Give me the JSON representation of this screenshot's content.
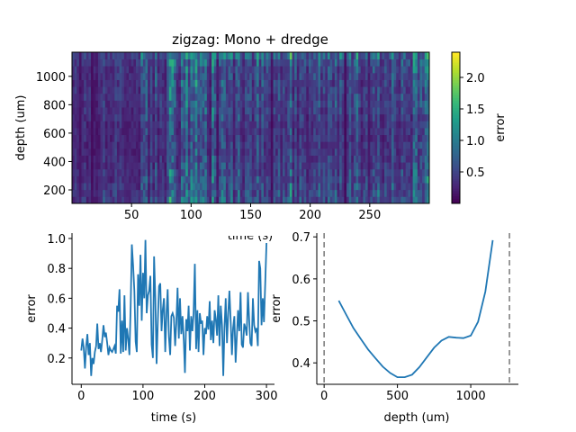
{
  "chart_data": [
    {
      "type": "heatmap",
      "title": "zigzag: Mono + dredge",
      "xlabel": "time (s)",
      "ylabel": "depth (um)",
      "xlim": [
        0,
        300
      ],
      "ylim": [
        105,
        1170
      ],
      "xticks": [
        50,
        100,
        150,
        200,
        250
      ],
      "yticks": [
        200,
        400,
        600,
        800,
        1000
      ],
      "colormap": "viridis",
      "colorbar": {
        "label": "error",
        "range": [
          0.0,
          2.4
        ],
        "ticks": [
          0.5,
          1.0,
          1.5,
          2.0
        ]
      }
    },
    {
      "type": "line",
      "xlabel": "time (s)",
      "ylabel": "error",
      "xlim": [
        -15,
        313
      ],
      "ylim": [
        0.024,
        1.036
      ],
      "xticks": [
        0,
        100,
        200,
        300
      ],
      "yticks": [
        0.2,
        0.4,
        0.6,
        0.8,
        1.0
      ],
      "color": "#1f77b4",
      "x_start": 0,
      "x_step": 2,
      "values": [
        0.25,
        0.33,
        0.27,
        0.13,
        0.28,
        0.36,
        0.22,
        0.3,
        0.08,
        0.2,
        0.16,
        0.24,
        0.28,
        0.43,
        0.26,
        0.3,
        0.24,
        0.32,
        0.42,
        0.34,
        0.37,
        0.3,
        0.22,
        0.27,
        0.25,
        0.24,
        0.26,
        0.28,
        0.23,
        0.55,
        0.51,
        0.66,
        0.23,
        0.45,
        0.24,
        0.62,
        0.25,
        0.4,
        0.33,
        0.22,
        0.55,
        0.96,
        0.82,
        0.65,
        0.31,
        0.24,
        0.76,
        0.55,
        0.89,
        0.45,
        0.77,
        0.6,
        0.99,
        0.5,
        0.62,
        0.65,
        0.75,
        0.29,
        0.2,
        0.88,
        0.6,
        0.16,
        0.45,
        0.68,
        0.7,
        0.38,
        0.52,
        0.6,
        0.24,
        0.5,
        0.66,
        0.34,
        0.22,
        0.48,
        0.5,
        0.47,
        0.28,
        0.43,
        0.67,
        0.33,
        0.6,
        0.36,
        0.48,
        0.32,
        0.1,
        0.46,
        0.38,
        0.55,
        0.25,
        0.48,
        0.38,
        0.5,
        0.83,
        0.26,
        0.52,
        0.24,
        0.5,
        0.43,
        0.45,
        0.22,
        0.4,
        0.36,
        0.48,
        0.39,
        0.58,
        0.32,
        0.45,
        0.3,
        0.52,
        0.46,
        0.35,
        0.62,
        0.28,
        0.55,
        0.42,
        0.08,
        0.4,
        0.6,
        0.3,
        0.5,
        0.65,
        0.45,
        0.22,
        0.4,
        0.48,
        0.17,
        0.35,
        0.52,
        0.38,
        0.64,
        0.29,
        0.27,
        0.43,
        0.4,
        0.35,
        0.64,
        0.45,
        0.3,
        0.28,
        0.6,
        0.42,
        0.38,
        0.4,
        0.28,
        0.85,
        0.8,
        0.42,
        0.6,
        0.44,
        0.7,
        0.97
      ]
    },
    {
      "type": "line",
      "xlabel": "depth (um)",
      "ylabel": "error",
      "xlim": [
        -50,
        1325
      ],
      "ylim": [
        0.349,
        0.709
      ],
      "xticks": [
        0,
        500,
        1000
      ],
      "yticks": [
        0.4,
        0.5,
        0.6,
        0.7
      ],
      "color": "#1f77b4",
      "x": [
        100,
        150,
        200,
        250,
        300,
        350,
        400,
        450,
        500,
        550,
        600,
        650,
        700,
        750,
        800,
        850,
        900,
        950,
        1000,
        1050,
        1100,
        1150
      ],
      "values": [
        0.548,
        0.515,
        0.483,
        0.457,
        0.432,
        0.411,
        0.391,
        0.376,
        0.366,
        0.366,
        0.372,
        0.39,
        0.413,
        0.436,
        0.453,
        0.462,
        0.46,
        0.459,
        0.465,
        0.498,
        0.57,
        0.692
      ],
      "vlines": {
        "x": [
          0,
          1264
        ],
        "color": "#808080",
        "style": "dashed"
      }
    }
  ]
}
